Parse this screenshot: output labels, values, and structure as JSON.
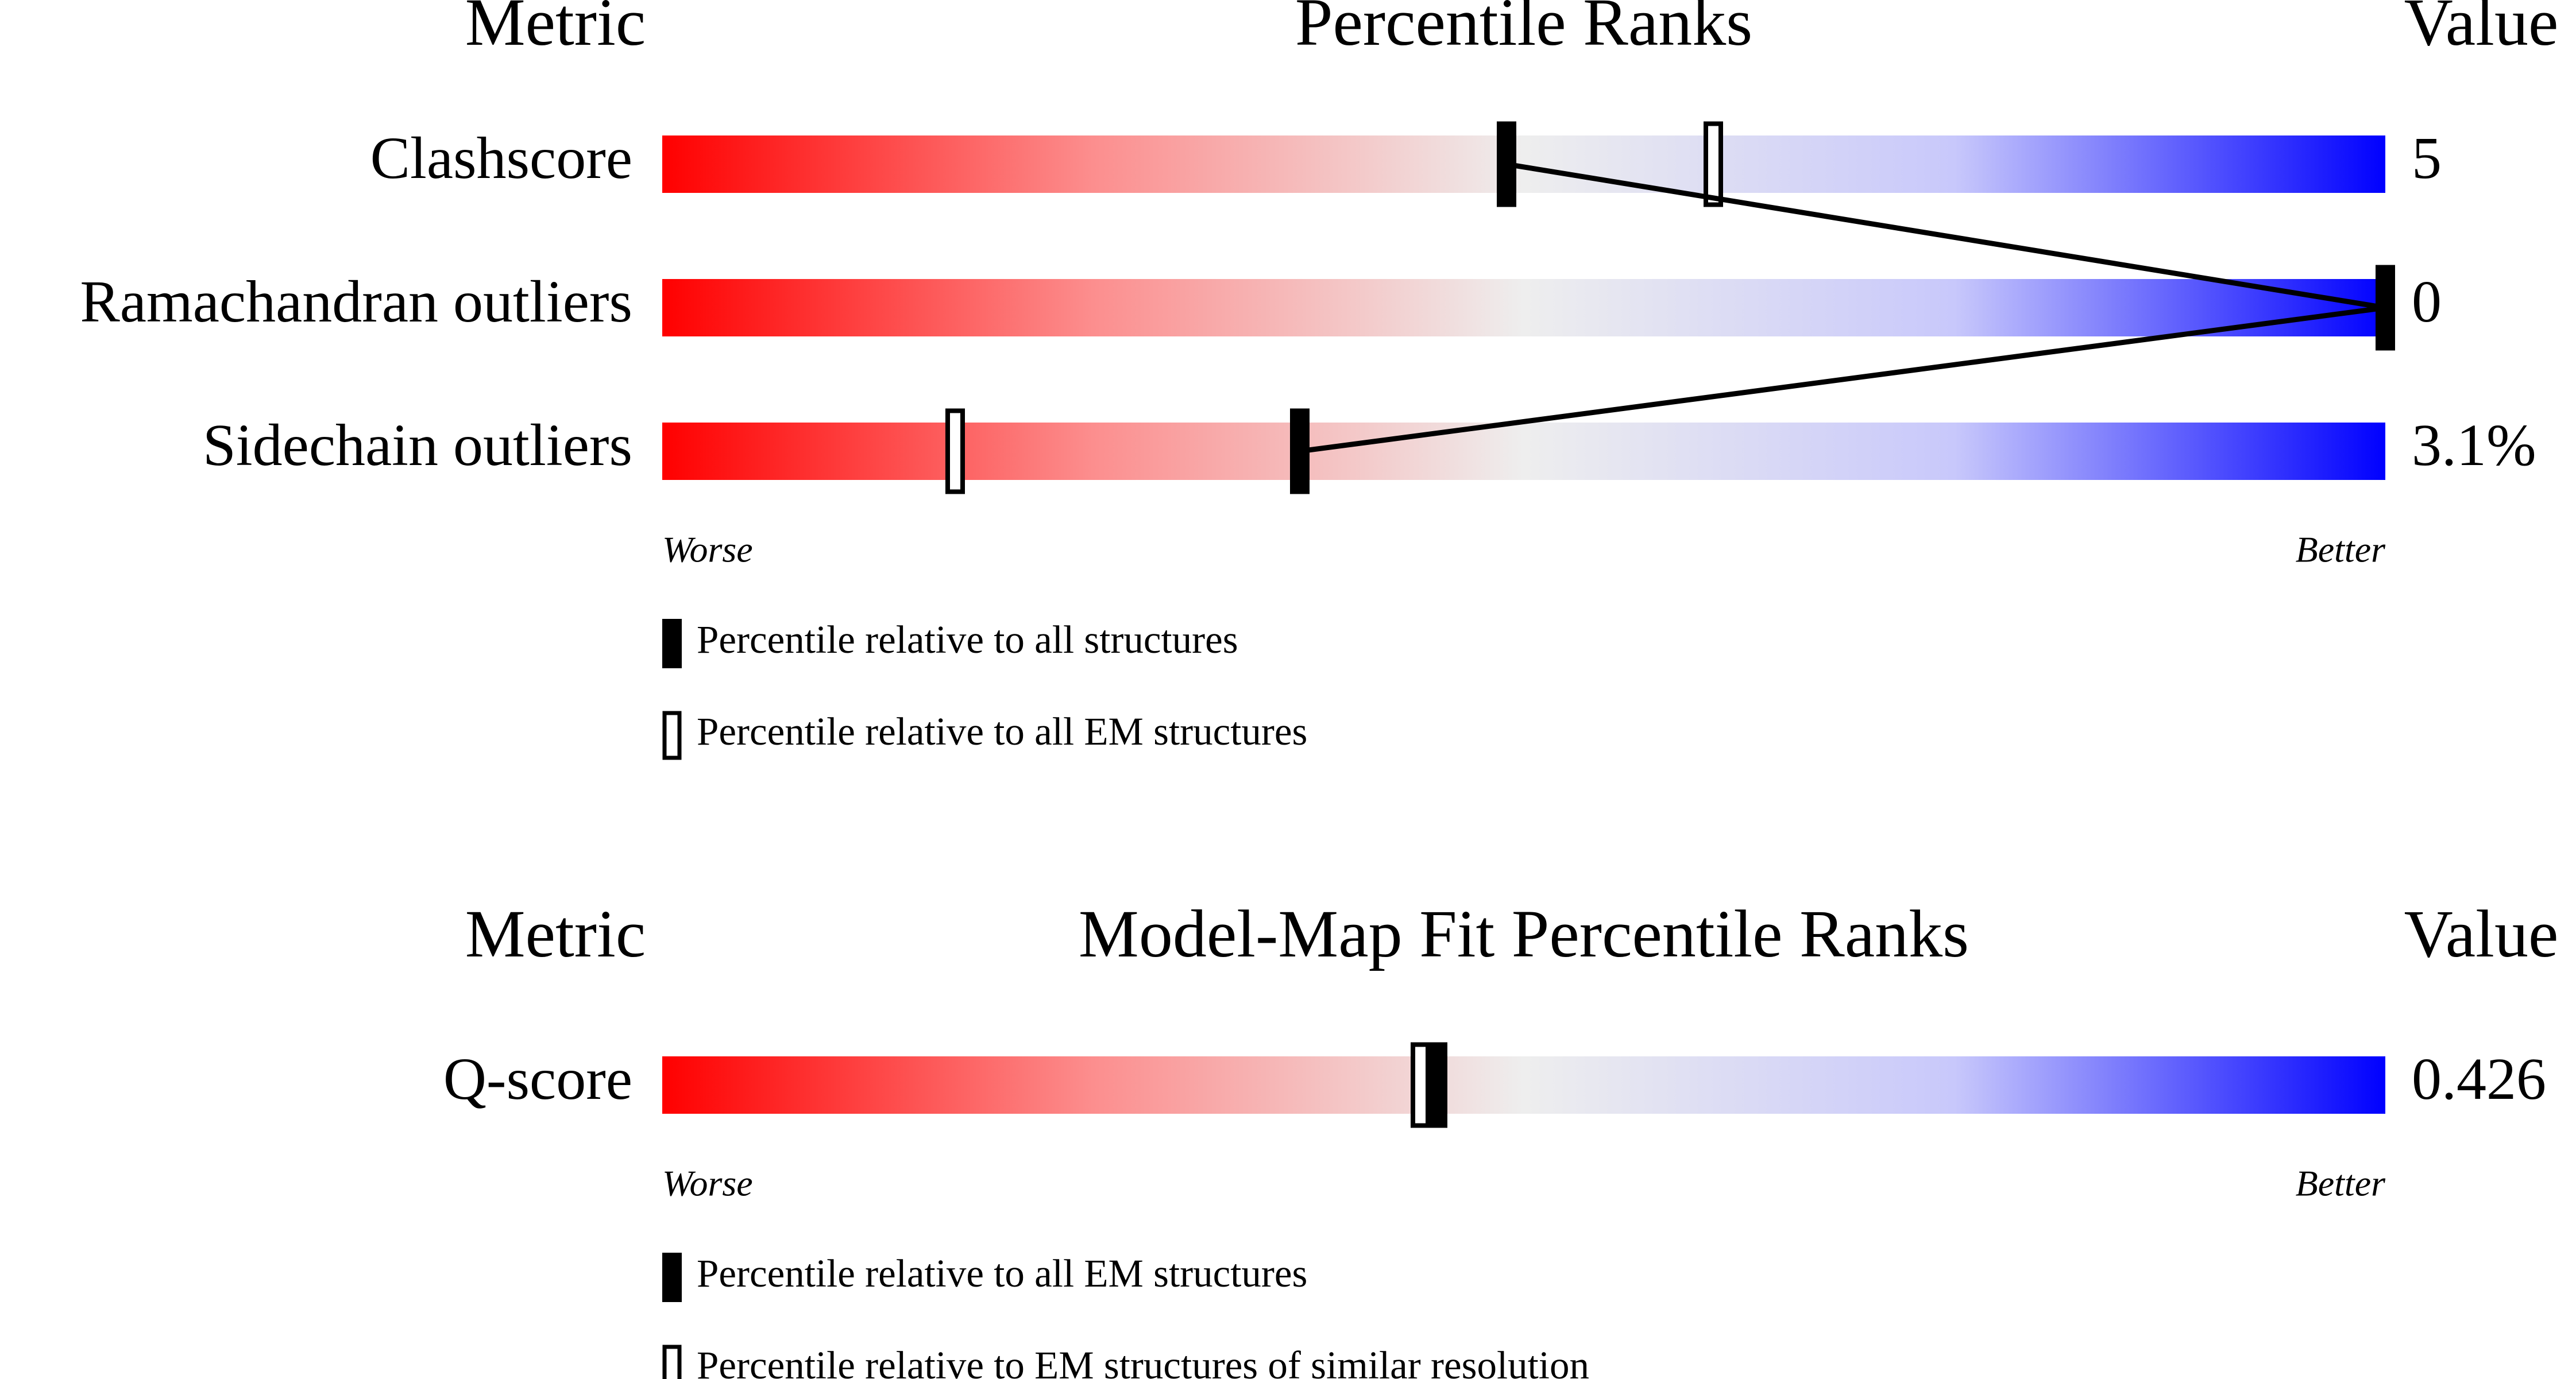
{
  "chart_data": [
    {
      "type": "percentile-slider",
      "header": {
        "metric": "Metric",
        "title": "Percentile Ranks",
        "value": "Value"
      },
      "metrics": [
        "Clashscore",
        "Ramachandran outliers",
        "Sidechain outliers"
      ],
      "metric_values": [
        "5",
        "0",
        "3.1%"
      ],
      "xlim": [
        0,
        100
      ],
      "axis_labels": [
        "Worse",
        "Better"
      ],
      "connect_filled": true,
      "series": [
        {
          "name": "Percentile relative to all structures",
          "style": "filled",
          "color": "#000000",
          "values": [
            49,
            100,
            37
          ]
        },
        {
          "name": "Percentile relative to all EM structures",
          "style": "open",
          "color": "#000000",
          "values": [
            61,
            100,
            17
          ]
        }
      ]
    },
    {
      "type": "percentile-slider",
      "header": {
        "metric": "Metric",
        "title": "Model-Map Fit Percentile Ranks",
        "value": "Value"
      },
      "metrics": [
        "Q-score"
      ],
      "metric_values": [
        "0.426"
      ],
      "xlim": [
        0,
        100
      ],
      "axis_labels": [
        "Worse",
        "Better"
      ],
      "connect_filled": true,
      "series": [
        {
          "name": "Percentile relative to all EM structures",
          "style": "filled",
          "color": "#000000",
          "values": [
            45
          ]
        },
        {
          "name": "Percentile relative to EM structures of similar resolution",
          "style": "open",
          "color": "#000000",
          "values": [
            44
          ]
        }
      ]
    }
  ]
}
